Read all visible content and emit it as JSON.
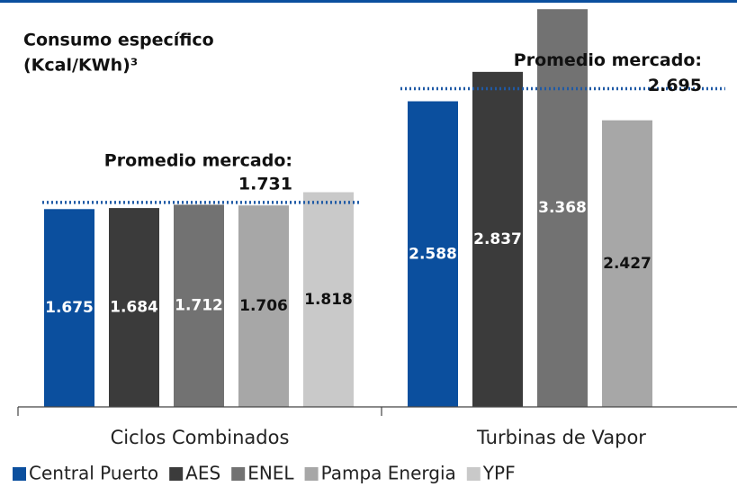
{
  "chart_data": {
    "type": "bar",
    "title": [
      "Consumo específico",
      "(Kcal/KWh)³"
    ],
    "categories": [
      "Ciclos Combinados",
      "Turbinas de Vapor"
    ],
    "series": [
      {
        "name": "Central Puerto",
        "color": "#0b4f9e",
        "label_color": "#ffffff",
        "values": [
          1675,
          2588
        ],
        "value_labels": [
          "1.675",
          "2.588"
        ]
      },
      {
        "name": "AES",
        "color": "#3b3b3b",
        "label_color": "#ffffff",
        "values": [
          1684,
          2837
        ],
        "value_labels": [
          "1.684",
          "2.837"
        ]
      },
      {
        "name": "ENEL",
        "color": "#727272",
        "label_color": "#ffffff",
        "values": [
          1712,
          3368
        ],
        "value_labels": [
          "1.712",
          "3.368"
        ]
      },
      {
        "name": "Pampa Energia",
        "color": "#a7a7a7",
        "label_color": "#111111",
        "values": [
          1706,
          2427
        ],
        "value_labels": [
          "1.706",
          "2.427"
        ]
      },
      {
        "name": "YPF",
        "color": "#c9c9c9",
        "label_color": "#111111",
        "values": [
          1818,
          null
        ],
        "value_labels": [
          "1.818",
          null
        ]
      }
    ],
    "annotations": [
      {
        "text": "Promedio mercado:",
        "value": 1731,
        "label": "1.731"
      },
      {
        "text": "Promedio mercado:",
        "value": 2695,
        "label": "2.695"
      }
    ],
    "ylim": [
      0,
      3400
    ],
    "grid": false,
    "legend": "bottom"
  }
}
